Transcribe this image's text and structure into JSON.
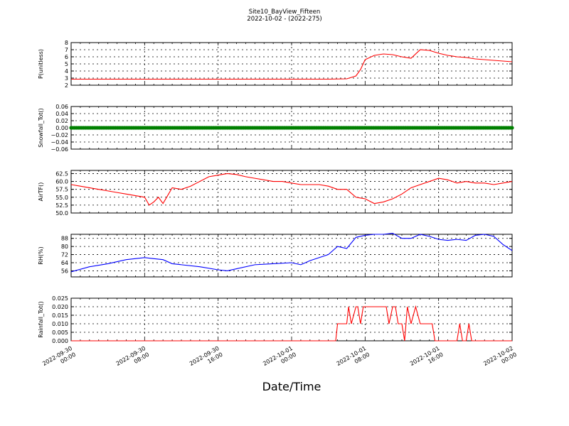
{
  "title": "Site10_BayView_Fifteen",
  "subtitle": "2022-10-02 - (2022-275)",
  "xlabel": "Date/Time",
  "x_ticks": [
    "2022-09-30\n00:00",
    "2022-09-30\n08:00",
    "2022-09-30\n16:00",
    "2022-10-01\n00:00",
    "2022-10-01\n08:00",
    "2022-10-01\n16:00",
    "2022-10-02\n00:00"
  ],
  "colors": {
    "P": "#ff0000",
    "Snow": "#008000",
    "AirT": "#ff0000",
    "RH": "#0000ff",
    "Rain": "#ff0000"
  },
  "chart_data": [
    {
      "type": "line",
      "ylabel": "P(unitless)",
      "ylim": [
        2,
        8
      ],
      "yticks": [
        "2",
        "3",
        "4",
        "5",
        "6",
        "7",
        "8"
      ],
      "grid": true,
      "x": [
        0,
        4,
        8,
        12,
        16,
        20,
        24,
        28,
        30,
        31,
        31.5,
        32,
        33,
        34,
        35,
        36,
        37,
        38,
        39,
        40,
        41,
        42,
        43,
        44,
        45,
        46,
        47,
        48
      ],
      "values": [
        2.85,
        2.85,
        2.85,
        2.85,
        2.85,
        2.85,
        2.85,
        2.85,
        2.9,
        3.3,
        4.2,
        5.6,
        6.2,
        6.4,
        6.3,
        6.0,
        5.8,
        7.0,
        6.9,
        6.5,
        6.2,
        6.0,
        5.9,
        5.7,
        5.6,
        5.5,
        5.4,
        5.3
      ],
      "series_color": "P"
    },
    {
      "type": "scatter",
      "ylabel": "Snowfall_Tot()",
      "ylim": [
        -0.06,
        0.06
      ],
      "yticks": [
        "−0.06",
        "−0.04",
        "−0.02",
        "0.00",
        "0.02",
        "0.04",
        "0.06"
      ],
      "grid": true,
      "x": [
        0,
        48
      ],
      "values": [
        0,
        0
      ],
      "series_color": "Snow"
    },
    {
      "type": "line",
      "ylabel": "AirTF()",
      "ylim": [
        50,
        63.5
      ],
      "yticks": [
        "50.0",
        "52.5",
        "55.0",
        "57.5",
        "60.0",
        "62.5"
      ],
      "grid": true,
      "x": [
        0,
        1,
        2,
        3,
        4,
        5,
        6,
        7,
        8,
        8.5,
        9,
        9.5,
        10,
        10.5,
        11,
        12,
        13,
        14,
        15,
        16,
        17,
        18,
        19,
        20,
        21,
        22,
        23,
        24,
        25,
        26,
        27,
        28,
        29,
        30,
        31,
        32,
        33,
        34,
        35,
        36,
        37,
        38,
        39,
        40,
        41,
        42,
        43,
        44,
        45,
        46,
        47,
        48
      ],
      "values": [
        59,
        58.5,
        58,
        57.5,
        57,
        56.5,
        56,
        55.5,
        55,
        52.5,
        53.5,
        55,
        53,
        55.5,
        58,
        57.5,
        58.5,
        60,
        61.5,
        62,
        62.5,
        62.2,
        61.5,
        61,
        60.5,
        60,
        60,
        59.5,
        59,
        59,
        59,
        58.5,
        57.5,
        57.5,
        55,
        54.5,
        53,
        53.5,
        54.5,
        56,
        58,
        59,
        60,
        61,
        60.5,
        59.5,
        60,
        59.5,
        59.5,
        59,
        59.5,
        60
      ],
      "series_color": "AirT"
    },
    {
      "type": "line",
      "ylabel": "RH(%)",
      "ylim": [
        50,
        92
      ],
      "yticks": [
        "56",
        "64",
        "72",
        "80",
        "88"
      ],
      "grid": true,
      "x": [
        0,
        2,
        4,
        6,
        8,
        9,
        10,
        11,
        12,
        14,
        16,
        17,
        18,
        20,
        22,
        24,
        25,
        26,
        28,
        29,
        30,
        31,
        32,
        33,
        34,
        35,
        36,
        37,
        38,
        39,
        40,
        41,
        42,
        43,
        44,
        45,
        46,
        47,
        48
      ],
      "values": [
        55,
        60,
        63,
        67,
        69,
        68,
        67,
        63,
        62,
        60,
        57,
        56,
        58,
        62,
        63,
        64,
        62,
        66,
        72,
        80,
        78,
        89,
        91,
        92,
        92,
        93,
        88,
        88,
        92,
        90,
        87,
        86,
        87,
        86,
        91,
        92,
        90,
        82,
        76
      ],
      "series_color": "RH"
    },
    {
      "type": "line",
      "ylabel": "Rainfall_Tot()",
      "ylim": [
        0,
        0.025
      ],
      "yticks": [
        "0.000",
        "0.005",
        "0.010",
        "0.015",
        "0.020",
        "0.025"
      ],
      "grid": true,
      "x": [
        0,
        28.8,
        29,
        30,
        30.2,
        30.5,
        31,
        31.2,
        31.5,
        31.8,
        32,
        33,
        34,
        34.3,
        34.6,
        35,
        35.3,
        35.6,
        36,
        36.3,
        36.6,
        37,
        37.5,
        38,
        38.5,
        39,
        39.3,
        39.6,
        40,
        42,
        42.3,
        42.6,
        43,
        43.3,
        43.6,
        44,
        46,
        48
      ],
      "values": [
        0,
        0,
        0.01,
        0.01,
        0.02,
        0.01,
        0.02,
        0.02,
        0.01,
        0.02,
        0.02,
        0.02,
        0.02,
        0.02,
        0.01,
        0.02,
        0.02,
        0.01,
        0.01,
        0,
        0.02,
        0.01,
        0.02,
        0.01,
        0.01,
        0.01,
        0.01,
        0,
        0,
        0,
        0.01,
        0,
        0,
        0.01,
        0,
        0,
        0,
        0
      ],
      "series_color": "Rain"
    }
  ]
}
